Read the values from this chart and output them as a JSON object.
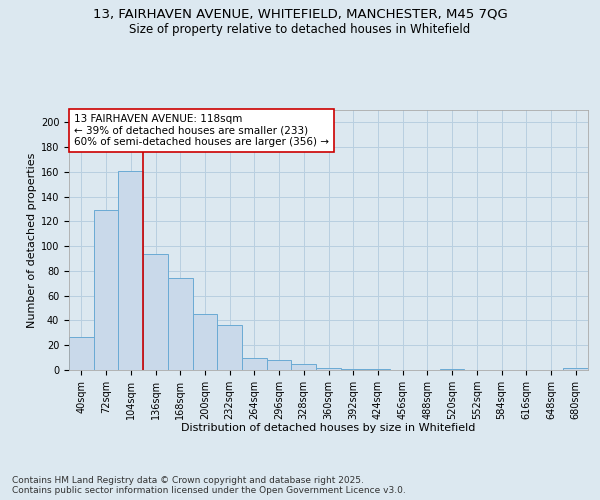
{
  "title_line1": "13, FAIRHAVEN AVENUE, WHITEFIELD, MANCHESTER, M45 7QG",
  "title_line2": "Size of property relative to detached houses in Whitefield",
  "xlabel": "Distribution of detached houses by size in Whitefield",
  "ylabel": "Number of detached properties",
  "categories": [
    "40sqm",
    "72sqm",
    "104sqm",
    "136sqm",
    "168sqm",
    "200sqm",
    "232sqm",
    "264sqm",
    "296sqm",
    "328sqm",
    "360sqm",
    "392sqm",
    "424sqm",
    "456sqm",
    "488sqm",
    "520sqm",
    "552sqm",
    "584sqm",
    "616sqm",
    "648sqm",
    "680sqm"
  ],
  "values": [
    27,
    129,
    161,
    94,
    74,
    45,
    36,
    10,
    8,
    5,
    2,
    1,
    1,
    0,
    0,
    1,
    0,
    0,
    0,
    0,
    2
  ],
  "bar_color": "#c9d9ea",
  "bar_edge_color": "#6aaad4",
  "vline_x_idx": 2.5,
  "vline_color": "#cc0000",
  "annotation_text": "13 FAIRHAVEN AVENUE: 118sqm\n← 39% of detached houses are smaller (233)\n60% of semi-detached houses are larger (356) →",
  "annotation_box_color": "#ffffff",
  "annotation_box_edge": "#cc0000",
  "ylim": [
    0,
    210
  ],
  "yticks": [
    0,
    20,
    40,
    60,
    80,
    100,
    120,
    140,
    160,
    180,
    200
  ],
  "footer": "Contains HM Land Registry data © Crown copyright and database right 2025.\nContains public sector information licensed under the Open Government Licence v3.0.",
  "fig_bg_color": "#dce8f0",
  "plot_bg_color": "#dce8f0",
  "grid_color": "#b8cfe0",
  "title_fontsize": 9.5,
  "subtitle_fontsize": 8.5,
  "axis_label_fontsize": 8,
  "tick_fontsize": 7,
  "annotation_fontsize": 7.5,
  "footer_fontsize": 6.5
}
